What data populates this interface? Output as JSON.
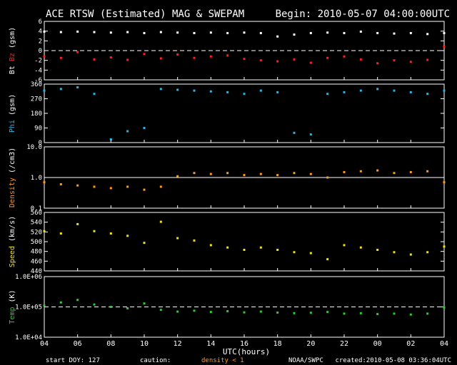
{
  "header": {
    "title": "ACE RTSW (Estimated) MAG & SWEPAM",
    "begin": "Begin: 2010-05-07 04:00:00UTC"
  },
  "footer": {
    "start_doy": "start DOY: 127",
    "caution": "caution:",
    "density_note": "density < 1",
    "org": "NOAA/SWPC",
    "created": "created:2010-05-08 03:36:04UTC"
  },
  "colors": {
    "bt": "#ffffff",
    "bz": "#ff2020",
    "phi": "#29b6e6",
    "density": "#ff9a1f",
    "speed": "#f0e020",
    "temp": "#2ecc2e",
    "frame": "#ffffff",
    "background": "#000000"
  },
  "chart_data": {
    "type": "scatter",
    "xlabel": "UTC(hours)",
    "x_ticks": [
      "04",
      "06",
      "08",
      "10",
      "12",
      "14",
      "16",
      "18",
      "20",
      "22",
      "00",
      "02",
      "04"
    ],
    "xlim_hours": [
      4,
      28
    ],
    "x_hours": [
      4,
      5,
      6,
      7,
      8,
      9,
      10,
      11,
      12,
      13,
      14,
      15,
      16,
      17,
      18,
      19,
      20,
      21,
      22,
      23,
      24,
      25,
      26,
      27,
      28
    ],
    "panels": [
      {
        "id": "mag",
        "ylabel_parts": [
          "Bt",
          "Bz",
          "(gsm)"
        ],
        "yticks": [
          "6",
          "4",
          "2",
          "0",
          "-2",
          "-4",
          "-6"
        ],
        "ylim": [
          -6,
          6
        ],
        "dashed_ref": 0,
        "series": [
          {
            "name": "Bt",
            "color_key": "bt",
            "values": [
              3.9,
              3.8,
              3.9,
              3.8,
              3.7,
              3.8,
              3.6,
              3.8,
              3.7,
              3.6,
              3.7,
              3.6,
              3.7,
              3.6,
              2.9,
              3.3,
              3.6,
              3.7,
              3.6,
              3.9,
              3.6,
              3.5,
              3.6,
              3.4,
              3.6
            ]
          },
          {
            "name": "Bz",
            "color_key": "bz",
            "values": [
              -1.2,
              -1.5,
              -0.3,
              -1.8,
              -1.4,
              -1.9,
              -0.7,
              -1.6,
              -0.8,
              -1.5,
              -1.2,
              -1.0,
              -1.7,
              -2.0,
              -2.2,
              -1.8,
              -2.5,
              -1.5,
              -1.2,
              -1.8,
              -2.6,
              -2.0,
              -2.3,
              -1.9,
              0.8
            ]
          }
        ]
      },
      {
        "id": "phi",
        "ylabel_parts": [
          "Phi",
          "(gsm)"
        ],
        "yticks": [
          "360",
          "270",
          "180",
          "90",
          "0"
        ],
        "ylim": [
          0,
          360
        ],
        "series": [
          {
            "name": "Phi",
            "color_key": "phi",
            "values": [
              320,
              330,
              340,
              300,
              20,
              70,
              90,
              330,
              325,
              320,
              315,
              310,
              300,
              320,
              310,
              60,
              50,
              300,
              310,
              320,
              330,
              320,
              310,
              300,
              320
            ]
          }
        ]
      },
      {
        "id": "density",
        "ylabel_parts": [
          "Density",
          "(/cm3)"
        ],
        "yticks": [
          "10.0",
          "1.0",
          "0.1"
        ],
        "ylim": [
          0.1,
          10
        ],
        "log": true,
        "solid_ref": 1,
        "series": [
          {
            "name": "Density",
            "color_key": "density",
            "values": [
              0.7,
              0.6,
              0.55,
              0.5,
              0.45,
              0.5,
              0.4,
              0.5,
              1.1,
              1.4,
              1.3,
              1.4,
              1.2,
              1.3,
              1.2,
              1.4,
              1.3,
              1.0,
              1.5,
              1.6,
              1.7,
              1.4,
              1.5,
              1.6,
              0.7
            ]
          }
        ]
      },
      {
        "id": "speed",
        "ylabel_parts": [
          "Speed",
          "(km/s)"
        ],
        "yticks": [
          "560",
          "540",
          "520",
          "500",
          "480",
          "460",
          "440"
        ],
        "ylim": [
          440,
          565
        ],
        "series": [
          {
            "name": "Speed",
            "color_key": "speed",
            "values": [
              525,
              520,
              540,
              525,
              520,
              515,
              500,
              545,
              510,
              505,
              495,
              490,
              485,
              490,
              485,
              480,
              478,
              465,
              495,
              490,
              485,
              480,
              475,
              480,
              492
            ]
          }
        ]
      },
      {
        "id": "temp",
        "ylabel_parts": [
          "Temp",
          "(K)"
        ],
        "yticks": [
          "1.0E+06",
          "1.0E+05",
          "1.0E+04"
        ],
        "ylim": [
          10000,
          1000000
        ],
        "log": true,
        "dashed_ref": 100000,
        "series": [
          {
            "name": "Temp",
            "color_key": "temp",
            "values": [
              110000,
              140000,
              170000,
              120000,
              100000,
              90000,
              130000,
              80000,
              70000,
              75000,
              68000,
              72000,
              66000,
              70000,
              65000,
              62000,
              64000,
              68000,
              60000,
              62000,
              58000,
              60000,
              56000,
              60000,
              95000
            ]
          }
        ]
      }
    ]
  }
}
